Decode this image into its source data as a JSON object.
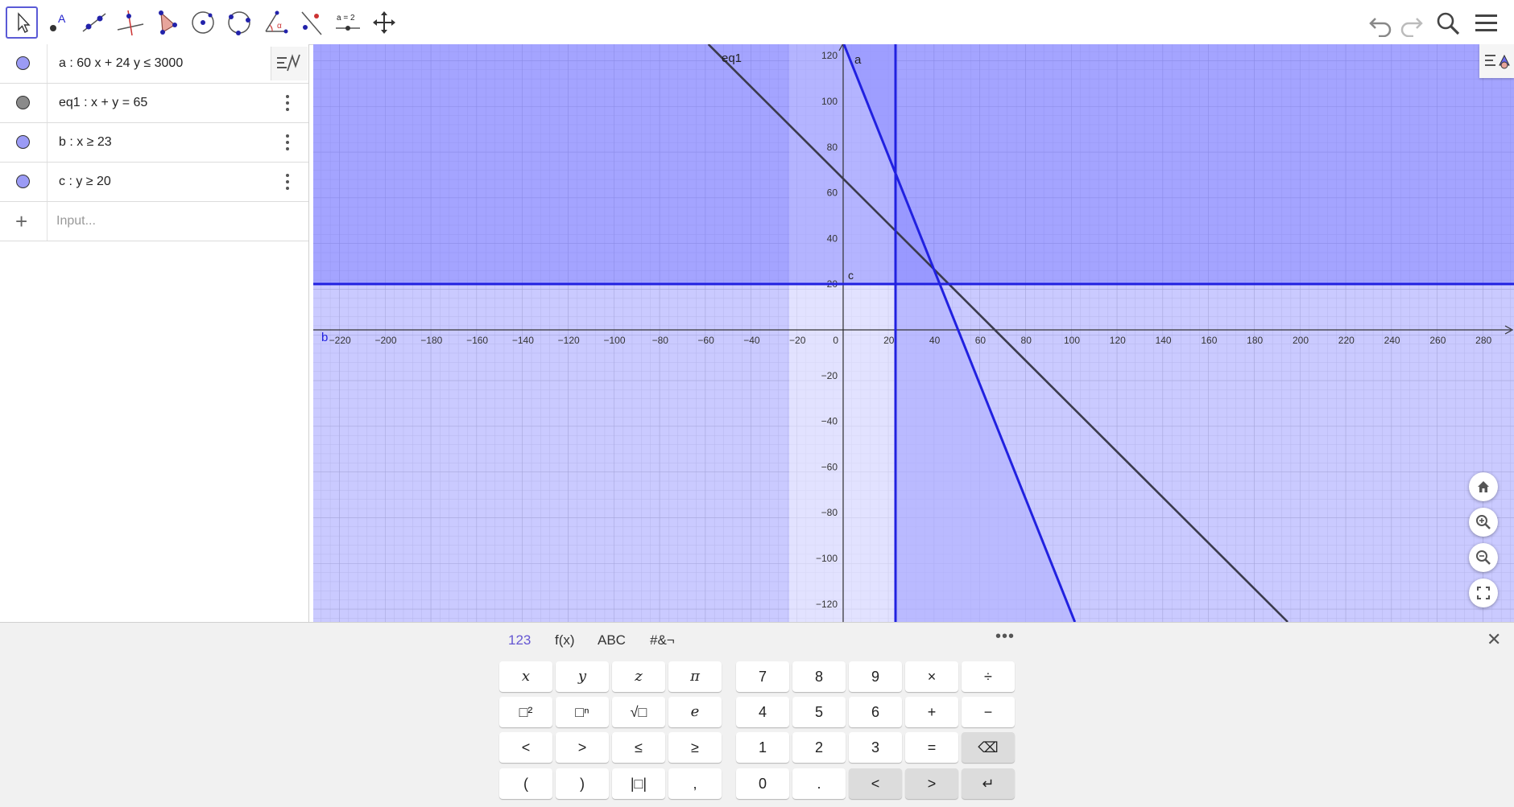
{
  "toolbar": {
    "tools": [
      {
        "name": "move-tool",
        "icon": "arrow-icon"
      },
      {
        "name": "point-tool",
        "icon": "point-icon"
      },
      {
        "name": "line-tool",
        "icon": "line-icon"
      },
      {
        "name": "perpendicular-tool",
        "icon": "perpendicular-icon"
      },
      {
        "name": "polygon-tool",
        "icon": "polygon-icon"
      },
      {
        "name": "circle-tool",
        "icon": "circle-icon"
      },
      {
        "name": "circle-three-points-tool",
        "icon": "circle-three-icon"
      },
      {
        "name": "angle-tool",
        "icon": "angle-icon"
      },
      {
        "name": "reflect-tool",
        "icon": "reflect-icon"
      },
      {
        "name": "slider-tool",
        "icon": "slider-icon",
        "label": "a = 2"
      },
      {
        "name": "move-graphics-tool",
        "icon": "move-graphics-icon"
      }
    ],
    "selected_tool": "move-tool"
  },
  "algebra": {
    "rows": [
      {
        "label": "a :  60 x + 24 y ≤ 3000",
        "color": "#9b9bf5"
      },
      {
        "label": "eq1 :  x + y  =  65",
        "color": "#8a8a8a"
      },
      {
        "label": "b :  x ≥ 23",
        "color": "#9b9bf5"
      },
      {
        "label": "c :  y ≥ 20",
        "color": "#9b9bf5"
      }
    ],
    "input_placeholder": "Input..."
  },
  "graph": {
    "x_ticks": [
      "−220",
      "−200",
      "−180",
      "−160",
      "−140",
      "−120",
      "−100",
      "−80",
      "−60",
      "−40",
      "−20",
      "0",
      "20",
      "40",
      "60",
      "80",
      "100",
      "120",
      "140",
      "160",
      "180",
      "200",
      "220",
      "240",
      "260",
      "280"
    ],
    "y_ticks_pos": [
      "120",
      "100",
      "80",
      "60",
      "40",
      "20"
    ],
    "y_ticks_neg": [
      "−20",
      "−40",
      "−60",
      "−80",
      "−100",
      "−120"
    ],
    "labels": {
      "eq1": "eq1",
      "a": "a",
      "b": "b",
      "c": "c"
    },
    "colors": {
      "region": "#5a5aff",
      "line_blue": "#2121e0",
      "line_dark": "#3b3b4d"
    }
  },
  "keyboard": {
    "tabs": [
      "123",
      "f(x)",
      "ABC",
      "#&¬"
    ],
    "active_tab": "123",
    "more": "•••",
    "close": "✕",
    "left_keys": [
      [
        "x",
        "y",
        "z",
        "π"
      ],
      [
        "□²",
        "□ⁿ",
        "√□",
        "e"
      ],
      [
        "<",
        ">",
        "≤",
        "≥"
      ],
      [
        "(",
        ")",
        "|□|",
        ","
      ]
    ],
    "right_keys": [
      [
        "7",
        "8",
        "9",
        "×",
        "÷"
      ],
      [
        "4",
        "5",
        "6",
        "+",
        "−"
      ],
      [
        "1",
        "2",
        "3",
        "=",
        "⌫"
      ],
      [
        "0",
        ".",
        "<",
        ">",
        "↵"
      ]
    ]
  }
}
